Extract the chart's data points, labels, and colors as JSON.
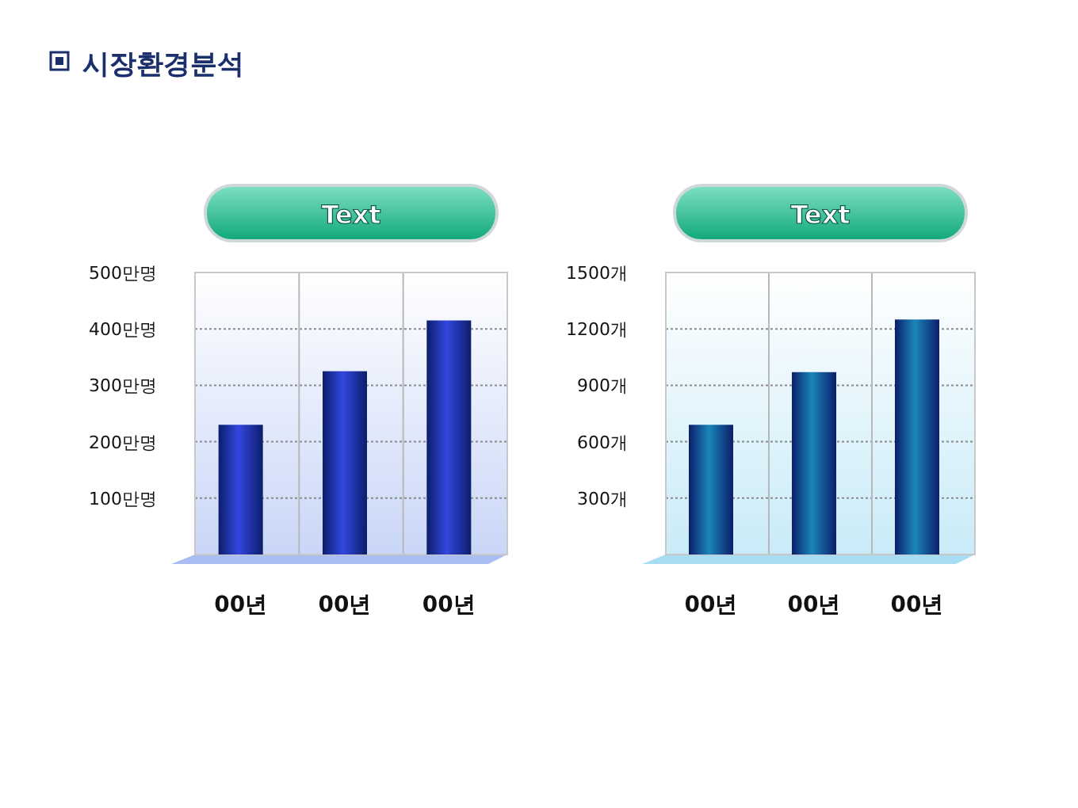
{
  "chart_data": [
    {
      "type": "bar",
      "title": "시장환경분석",
      "subtitle": "Text",
      "categories": [
        "00년",
        "00년",
        "00년"
      ],
      "values": [
        230,
        325,
        415
      ],
      "color": "#3347e0",
      "ylim": [
        0,
        500
      ],
      "yticks": [
        {
          "value": 100,
          "label": "100만명"
        },
        {
          "value": 200,
          "label": "200만명"
        },
        {
          "value": 300,
          "label": "300만명"
        },
        {
          "value": 400,
          "label": "400만명"
        },
        {
          "value": 500,
          "label": "500만명"
        }
      ],
      "grid": true
    },
    {
      "type": "bar",
      "subtitle": "Text",
      "categories": [
        "00년",
        "00년",
        "00년"
      ],
      "values": [
        690,
        970,
        1250
      ],
      "color": "#1a86b8",
      "ylim": [
        0,
        1500
      ],
      "yticks": [
        {
          "value": 300,
          "label": "300개"
        },
        {
          "value": 600,
          "label": "600개"
        },
        {
          "value": 900,
          "label": "900개"
        },
        {
          "value": 1200,
          "label": "1200개"
        },
        {
          "value": 1500,
          "label": "1500개"
        }
      ],
      "grid": true
    }
  ]
}
